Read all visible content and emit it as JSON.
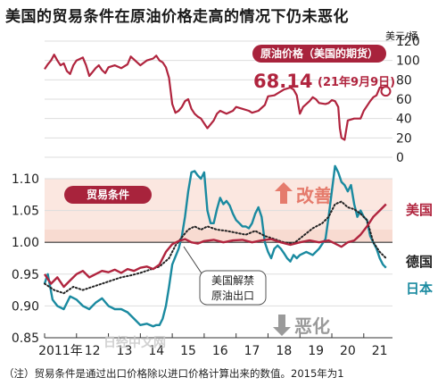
{
  "title": "美国的贸易条件在原油价格走高的情况下仍未恶化",
  "footnote": "（注）贸易条件是通过出口价格除以进口价格计算出来的数值。2015年为1",
  "watermark": "日经中文网",
  "colors": {
    "us": "#b0243e",
    "japan": "#1a8aa0",
    "germany": "#222222",
    "improve": "#e57b6c",
    "worsen": "#9a9a9a",
    "improve_band": "#f7d3c6"
  },
  "chart_data": [
    {
      "type": "line",
      "title": "原油价格（美国的期货）",
      "y_unit": "美元/桶",
      "ylim": [
        0,
        120
      ],
      "yticks": [
        0,
        20,
        40,
        60,
        80,
        100,
        120
      ],
      "annotation": {
        "value_text": "68.14",
        "date_text": "(21年9月9日)",
        "x": 2021.69,
        "y": 68.14
      },
      "series": [
        {
          "name": "",
          "x": [
            2011.0,
            2011.1,
            2011.2,
            2011.3,
            2011.4,
            2011.5,
            2011.6,
            2011.7,
            2011.8,
            2011.9,
            2012.0,
            2012.2,
            2012.3,
            2012.4,
            2012.5,
            2012.6,
            2012.7,
            2012.8,
            2012.9,
            2013.0,
            2013.2,
            2013.4,
            2013.6,
            2013.7,
            2013.8,
            2014.0,
            2014.2,
            2014.4,
            2014.5,
            2014.6,
            2014.7,
            2014.8,
            2014.9,
            2015.0,
            2015.1,
            2015.2,
            2015.3,
            2015.4,
            2015.5,
            2015.6,
            2015.7,
            2015.8,
            2015.9,
            2016.0,
            2016.1,
            2016.2,
            2016.3,
            2016.4,
            2016.5,
            2016.7,
            2016.9,
            2017.0,
            2017.2,
            2017.4,
            2017.5,
            2017.7,
            2017.9,
            2018.0,
            2018.2,
            2018.4,
            2018.5,
            2018.7,
            2018.8,
            2018.9,
            2019.0,
            2019.1,
            2019.3,
            2019.4,
            2019.5,
            2019.6,
            2019.8,
            2019.9,
            2020.0,
            2020.1,
            2020.2,
            2020.25,
            2020.3,
            2020.4,
            2020.5,
            2020.7,
            2020.9,
            2021.0,
            2021.2,
            2021.3,
            2021.4,
            2021.5,
            2021.6,
            2021.69
          ],
          "y": [
            91,
            96,
            100,
            106,
            100,
            95,
            97,
            89,
            86,
            95,
            100,
            103,
            95,
            84,
            88,
            92,
            95,
            90,
            87,
            93,
            95,
            92,
            96,
            104,
            101,
            95,
            100,
            102,
            105,
            100,
            98,
            93,
            82,
            55,
            46,
            48,
            52,
            58,
            60,
            50,
            45,
            42,
            40,
            35,
            30,
            34,
            38,
            45,
            48,
            45,
            48,
            52,
            50,
            48,
            46,
            48,
            54,
            63,
            64,
            68,
            70,
            72,
            70,
            64,
            45,
            52,
            58,
            62,
            60,
            56,
            55,
            56,
            59,
            58,
            52,
            30,
            20,
            18,
            38,
            40,
            40,
            48,
            58,
            62,
            64,
            72,
            72,
            68.14
          ]
        }
      ]
    },
    {
      "type": "line",
      "title": "贸易条件",
      "ylim": [
        0.85,
        1.1
      ],
      "yticks": [
        0.85,
        0.9,
        0.95,
        1.0,
        1.05,
        1.1
      ],
      "xlabel_ticks": [
        "2011年",
        "12",
        "13",
        "14",
        "15",
        "16",
        "17",
        "18",
        "19",
        "20",
        "21"
      ],
      "improve_label": "改善",
      "worsen_label": "恶化",
      "event_label_line1": "美国解禁",
      "event_label_line2": "原油出口",
      "series": [
        {
          "name": "美国",
          "x": [
            2011.0,
            2011.2,
            2011.4,
            2011.6,
            2011.8,
            2012.0,
            2012.2,
            2012.4,
            2012.6,
            2012.8,
            2013.0,
            2013.2,
            2013.4,
            2013.6,
            2013.8,
            2014.0,
            2014.2,
            2014.4,
            2014.6,
            2014.8,
            2015.0,
            2015.2,
            2015.4,
            2015.6,
            2015.8,
            2016.0,
            2016.3,
            2016.6,
            2016.9,
            2017.2,
            2017.5,
            2017.8,
            2018.1,
            2018.4,
            2018.7,
            2019.0,
            2019.3,
            2019.6,
            2019.9,
            2020.1,
            2020.3,
            2020.5,
            2020.7,
            2020.9,
            2021.1,
            2021.3,
            2021.5,
            2021.7
          ],
          "y": [
            0.95,
            0.935,
            0.945,
            0.93,
            0.94,
            0.95,
            0.955,
            0.945,
            0.95,
            0.955,
            0.953,
            0.957,
            0.952,
            0.958,
            0.955,
            0.96,
            0.962,
            0.958,
            0.965,
            0.985,
            0.997,
            1.002,
            1.005,
            1.0,
            0.998,
            1.002,
            1.004,
            1.0,
            1.003,
            1.004,
            1.0,
            1.003,
            1.005,
            1.0,
            0.996,
            1.0,
            1.003,
            1.0,
            1.003,
            0.998,
            0.993,
            1.0,
            1.003,
            1.012,
            1.025,
            1.04,
            1.05,
            1.06
          ]
        },
        {
          "name": "德国",
          "x": [
            2011.0,
            2011.3,
            2011.6,
            2011.9,
            2012.2,
            2012.5,
            2012.8,
            2013.1,
            2013.4,
            2013.7,
            2014.0,
            2014.3,
            2014.6,
            2014.9,
            2015.1,
            2015.3,
            2015.5,
            2015.7,
            2015.9,
            2016.1,
            2016.4,
            2016.7,
            2017.0,
            2017.3,
            2017.6,
            2017.9,
            2018.2,
            2018.5,
            2018.8,
            2019.1,
            2019.4,
            2019.7,
            2019.9,
            2020.1,
            2020.3,
            2020.5,
            2020.7,
            2020.9,
            2021.1,
            2021.3,
            2021.5,
            2021.7
          ],
          "y": [
            0.935,
            0.925,
            0.92,
            0.93,
            0.925,
            0.93,
            0.935,
            0.94,
            0.945,
            0.948,
            0.952,
            0.957,
            0.962,
            0.975,
            0.995,
            1.008,
            1.02,
            1.025,
            1.02,
            1.025,
            1.02,
            1.018,
            1.015,
            1.012,
            1.018,
            1.01,
            1.005,
            1.0,
            0.998,
            1.01,
            1.022,
            1.03,
            1.04,
            1.06,
            1.064,
            1.055,
            1.052,
            1.045,
            1.035,
            1.0,
            0.985,
            0.975
          ]
        },
        {
          "name": "日本",
          "x": [
            2011.0,
            2011.1,
            2011.25,
            2011.4,
            2011.6,
            2011.8,
            2012.0,
            2012.2,
            2012.4,
            2012.6,
            2012.8,
            2013.0,
            2013.2,
            2013.4,
            2013.6,
            2013.8,
            2014.0,
            2014.2,
            2014.4,
            2014.5,
            2014.6,
            2014.7,
            2014.8,
            2014.9,
            2015.0,
            2015.2,
            2015.3,
            2015.4,
            2015.5,
            2015.6,
            2015.7,
            2015.8,
            2015.9,
            2016.0,
            2016.1,
            2016.2,
            2016.3,
            2016.4,
            2016.5,
            2016.6,
            2016.7,
            2016.8,
            2016.9,
            2017.0,
            2017.1,
            2017.2,
            2017.3,
            2017.4,
            2017.5,
            2017.6,
            2017.7,
            2017.8,
            2017.9,
            2018.0,
            2018.1,
            2018.2,
            2018.3,
            2018.4,
            2018.5,
            2018.6,
            2018.7,
            2018.8,
            2018.9,
            2019.0,
            2019.2,
            2019.4,
            2019.6,
            2019.8,
            2019.9,
            2020.0,
            2020.1,
            2020.2,
            2020.3,
            2020.4,
            2020.5,
            2020.6,
            2020.7,
            2020.8,
            2020.9,
            2021.0,
            2021.1,
            2021.2,
            2021.3,
            2021.4,
            2021.5,
            2021.6,
            2021.7
          ],
          "y": [
            0.935,
            0.95,
            0.91,
            0.9,
            0.895,
            0.915,
            0.91,
            0.9,
            0.895,
            0.905,
            0.912,
            0.9,
            0.895,
            0.895,
            0.89,
            0.88,
            0.87,
            0.872,
            0.868,
            0.87,
            0.87,
            0.88,
            0.9,
            0.93,
            0.965,
            0.99,
            1.01,
            1.04,
            1.08,
            1.11,
            1.112,
            1.105,
            1.1,
            1.11,
            1.05,
            1.03,
            1.03,
            1.052,
            1.07,
            1.06,
            1.065,
            1.058,
            1.045,
            1.035,
            1.03,
            1.025,
            1.025,
            1.022,
            1.03,
            1.045,
            1.055,
            1.04,
            1.0,
            0.985,
            0.975,
            0.99,
            0.995,
            0.99,
            0.983,
            0.975,
            0.97,
            0.98,
            0.975,
            0.98,
            0.985,
            0.98,
            0.99,
            1.005,
            1.04,
            1.08,
            1.12,
            1.11,
            1.095,
            1.09,
            1.08,
            1.09,
            1.06,
            1.04,
            1.05,
            1.04,
            1.035,
            1.01,
            1.0,
            0.99,
            0.975,
            0.965,
            0.96
          ]
        }
      ]
    }
  ]
}
